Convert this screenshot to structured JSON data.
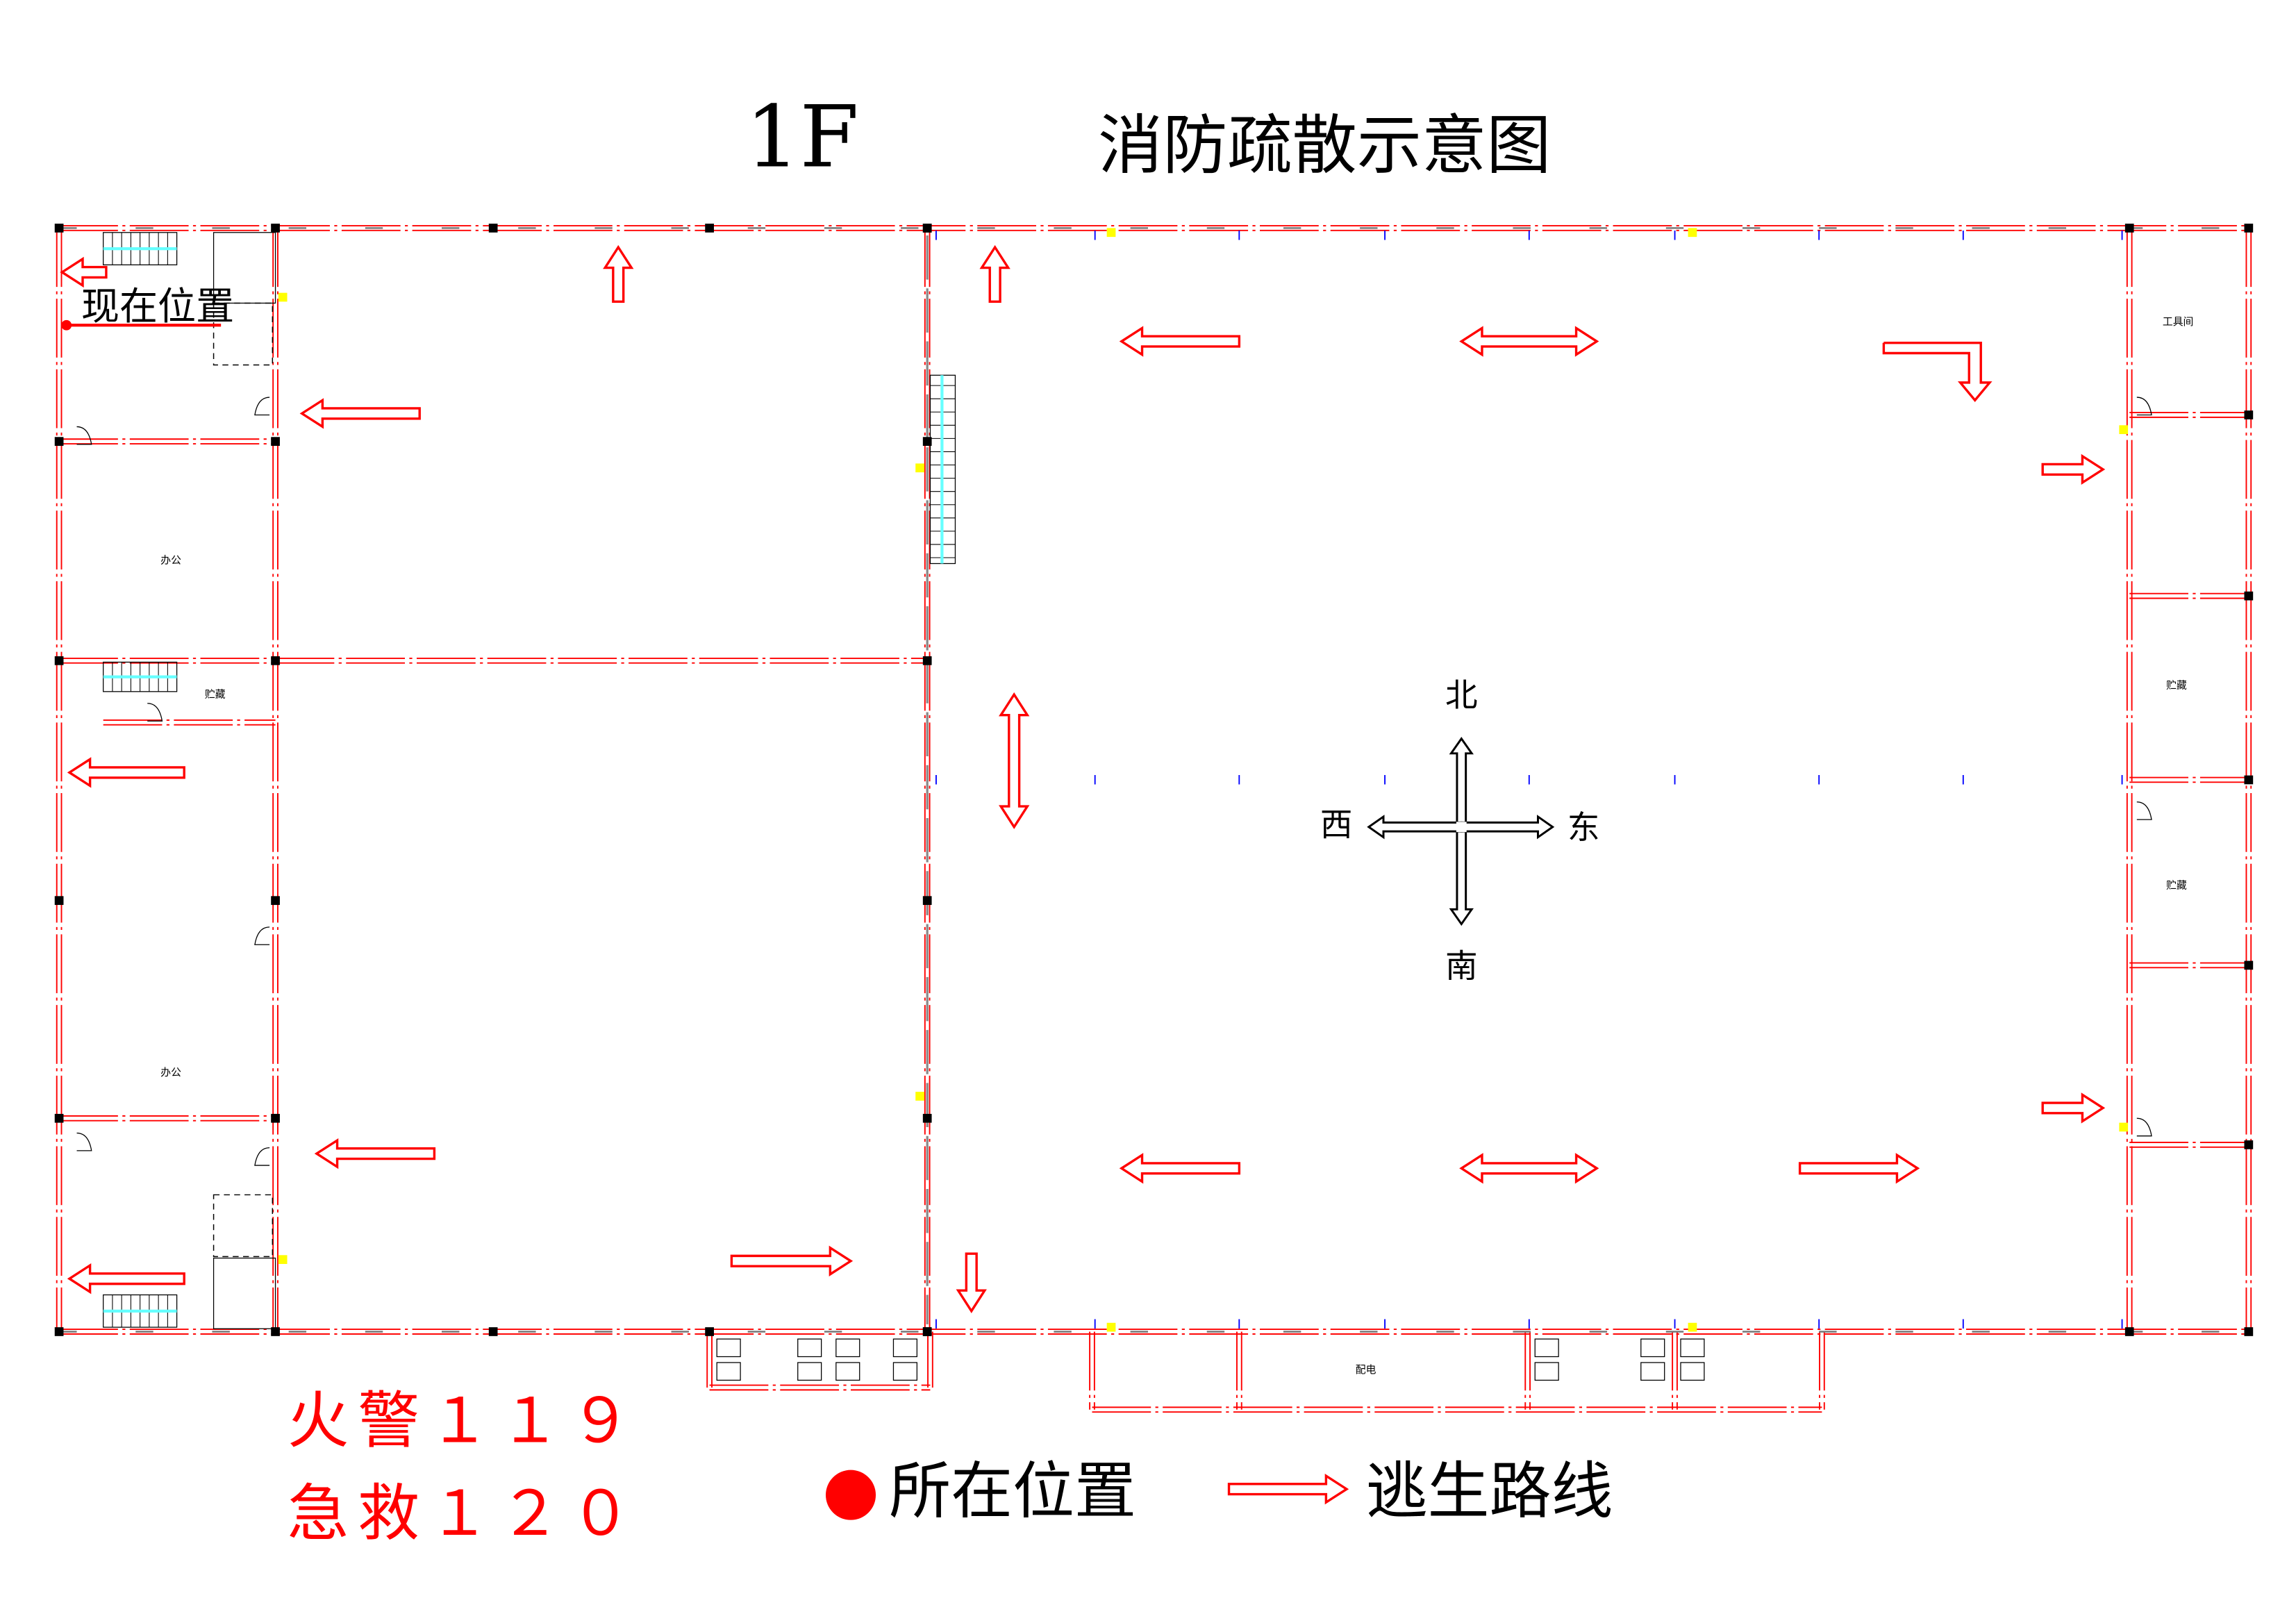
{
  "title": {
    "floor": "1F",
    "name": "消防疏散示意图"
  },
  "current_location_label": "现在位置",
  "rooms": {
    "office": "办公",
    "storage": "贮藏",
    "tool_room": "工具间",
    "power": "配电"
  },
  "compass": {
    "north": "北",
    "south": "南",
    "west": "西",
    "east": "东"
  },
  "emergency": {
    "fire": "火警１１９",
    "ambulance": "急救１２０"
  },
  "legend": {
    "location": "所在位置",
    "route": "逃生路线"
  },
  "colors": {
    "wall": "#ff0000",
    "arrow": "#ff0000",
    "location_dot": "#ff0000",
    "compass": "#000000",
    "stairs": "#66ffff",
    "door_marker": "#ffff00",
    "column": "#000000",
    "marker": "#0000ff"
  },
  "icons": {
    "arrow": "hollow-red-arrow",
    "location": "red-dot",
    "compass": "four-way-arrow"
  }
}
